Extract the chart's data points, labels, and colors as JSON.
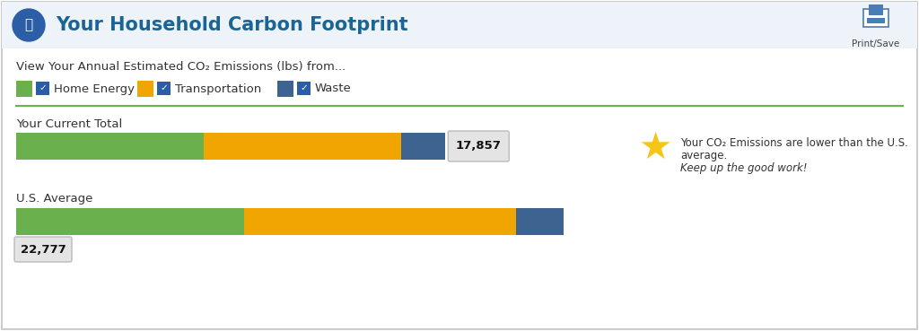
{
  "title": "Your Household Carbon Footprint",
  "subtitle": "View Your Annual Estimated CO₂ Emissions (lbs) from...",
  "legend_items": [
    "Home Energy",
    "Transportation",
    "Waste"
  ],
  "legend_colors": [
    "#6ab04c",
    "#f0a500",
    "#3d6490"
  ],
  "current_total": 17857,
  "us_average": 22777,
  "current_segments": [
    7800,
    8200,
    1857
  ],
  "average_segments": [
    9500,
    11300,
    1977
  ],
  "bar_colors": [
    "#6ab04c",
    "#f0a500",
    "#3d6490"
  ],
  "bg_color": "#ffffff",
  "title_color": "#1a6496",
  "header_bg": "#edf3f8",
  "bar_label_bg": "#e0e0e0",
  "star_color": "#f5c518",
  "row1_label": "Your Current Total",
  "row2_label": "U.S. Average",
  "print_save_label": "Print/Save",
  "separator_color": "#6ab04c",
  "border_color": "#cccccc",
  "annotation_line1": "Your CO₂ Emissions are lower than the U.S.",
  "annotation_line2": "average.",
  "annotation_line3": "Keep up the good work!"
}
